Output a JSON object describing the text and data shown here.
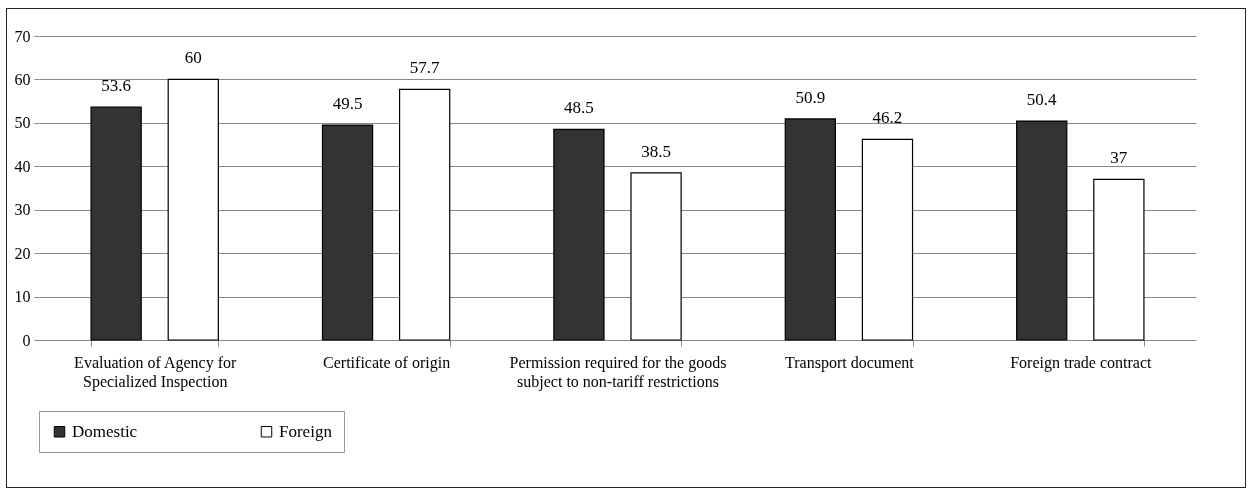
{
  "chart_data": {
    "type": "bar",
    "categories": [
      "Evaluation of Agency for Specialized Inspection",
      "Certificate of origin",
      "Permission  required for the goods subject to non-tariff restrictions",
      "Transport document",
      "Foreign trade contract"
    ],
    "series": [
      {
        "name": "Domestic",
        "color": "#333333",
        "values": [
          53.6,
          49.5,
          48.5,
          50.9,
          50.4
        ]
      },
      {
        "name": "Foreign",
        "color": "#ffffff",
        "values": [
          60,
          57.7,
          38.5,
          46.2,
          37
        ]
      }
    ],
    "ylim": [
      0,
      70
    ],
    "yticks": [
      0,
      10,
      20,
      30,
      40,
      50,
      60,
      70
    ],
    "grid": "y",
    "legend": "bottom",
    "data_labels": true
  }
}
